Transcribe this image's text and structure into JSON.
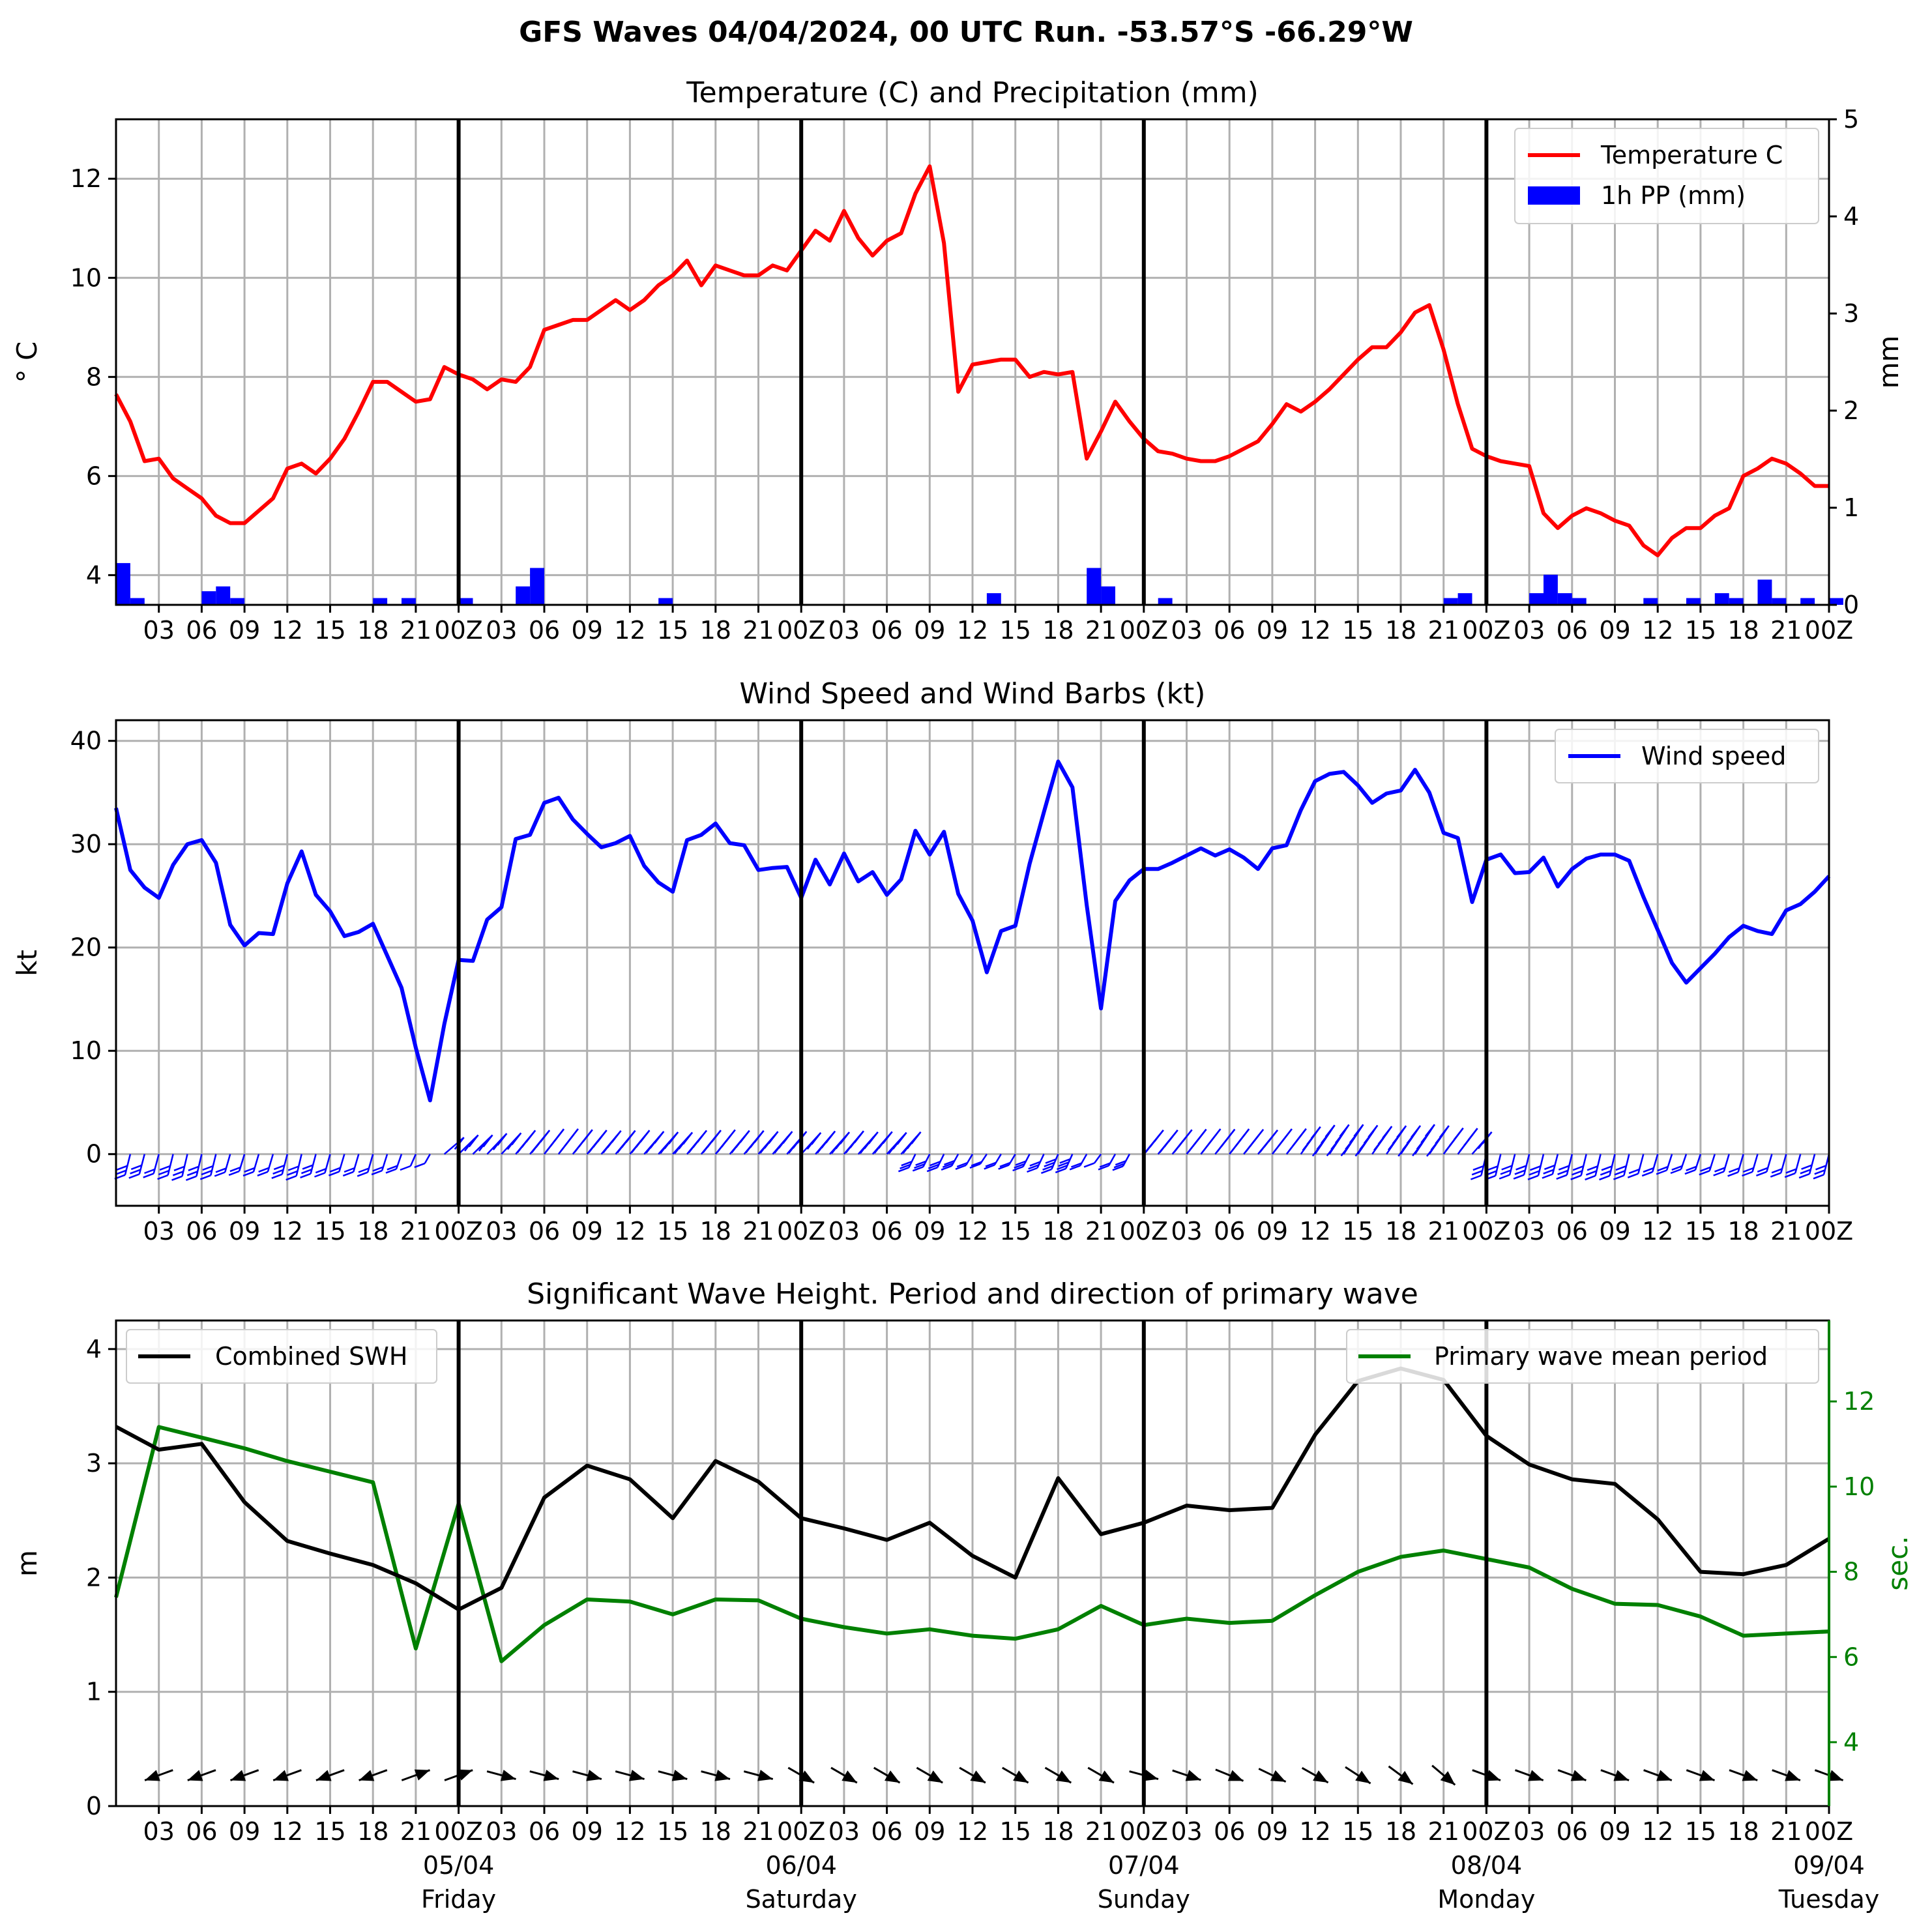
{
  "suptitle": "GFS Waves 04/04/2024, 00 UTC Run. -53.57°S -66.29°W",
  "colors": {
    "temperature": "#ff0000",
    "precip": "#0000ff",
    "wind": "#0000ff",
    "swh": "#000000",
    "period": "#008000",
    "grid": "#b0b0b0"
  },
  "x_ticks": [
    "03",
    "06",
    "09",
    "12",
    "15",
    "18",
    "21",
    "00Z",
    "03",
    "06",
    "09",
    "12",
    "15",
    "18",
    "21",
    "00Z",
    "03",
    "06",
    "09",
    "12",
    "15",
    "18",
    "21",
    "00Z",
    "03",
    "06",
    "09",
    "12",
    "15",
    "18",
    "21",
    "00Z",
    "03",
    "06",
    "09",
    "12",
    "15",
    "18",
    "21",
    "00Z"
  ],
  "date_labels": [
    {
      "date": "05/04",
      "day": "Friday"
    },
    {
      "date": "06/04",
      "day": "Saturday"
    },
    {
      "date": "07/04",
      "day": "Sunday"
    },
    {
      "date": "08/04",
      "day": "Monday"
    },
    {
      "date": "09/04",
      "day": "Tuesday"
    }
  ],
  "chart_data": [
    {
      "type": "line",
      "title": "Temperature (C) and Precipitation (mm)",
      "ylabel": "° C",
      "ylabel_right": "mm",
      "ylim": [
        3.4,
        13.2
      ],
      "ylim_right": [
        0,
        5
      ],
      "yticks": [
        4,
        6,
        8,
        10,
        12
      ],
      "yticks_right": [
        0,
        1,
        2,
        3,
        4,
        5
      ],
      "xlim_hours": [
        0,
        120
      ],
      "grid": true,
      "legend_position": "top-right",
      "series": [
        {
          "name": "Temperature C",
          "axis": "left",
          "kind": "line",
          "x": [
            0,
            1,
            2,
            3,
            4,
            5,
            6,
            7,
            8,
            9,
            10,
            11,
            12,
            13,
            14,
            15,
            16,
            17,
            18,
            19,
            20,
            21,
            22,
            23,
            24,
            25,
            26,
            27,
            28,
            29,
            30,
            31,
            32,
            33,
            34,
            35,
            36,
            37,
            38,
            39,
            40,
            41,
            42,
            43,
            44,
            45,
            46,
            47,
            48,
            49,
            50,
            51,
            52,
            53,
            54,
            55,
            56,
            57,
            58,
            59,
            60,
            61,
            62,
            63,
            64,
            65,
            66,
            67,
            68,
            69,
            70,
            71,
            72,
            73,
            74,
            75,
            76,
            77,
            78,
            79,
            80,
            81,
            82,
            83,
            84,
            85,
            86,
            87,
            88,
            89,
            90,
            91,
            92,
            93,
            94,
            95,
            96,
            97,
            98,
            99,
            100,
            101,
            102,
            103,
            104,
            105,
            106,
            107,
            108,
            109,
            110,
            111,
            112,
            113,
            114,
            115,
            116,
            117,
            118,
            119,
            120
          ],
          "values": [
            7.65,
            7.1,
            6.3,
            6.35,
            5.95,
            5.75,
            5.55,
            5.2,
            5.05,
            5.05,
            5.3,
            5.55,
            6.15,
            6.25,
            6.05,
            6.35,
            6.75,
            7.3,
            7.9,
            7.9,
            7.7,
            7.5,
            7.55,
            8.2,
            8.05,
            7.95,
            7.75,
            7.95,
            7.9,
            8.2,
            8.95,
            9.05,
            9.15,
            9.15,
            9.35,
            9.55,
            9.35,
            9.55,
            9.85,
            10.05,
            10.35,
            9.85,
            10.25,
            10.15,
            10.05,
            10.05,
            10.25,
            10.15,
            10.55,
            10.95,
            10.75,
            11.35,
            10.8,
            10.45,
            10.75,
            10.9,
            11.7,
            12.25,
            10.7,
            7.7,
            8.25,
            8.3,
            8.35,
            8.35,
            8.0,
            8.1,
            8.05,
            8.1,
            6.35,
            6.9,
            7.5,
            7.1,
            6.75,
            6.5,
            6.45,
            6.35,
            6.3,
            6.3,
            6.4,
            6.55,
            6.7,
            7.05,
            7.45,
            7.3,
            7.5,
            7.75,
            8.05,
            8.35,
            8.6,
            8.6,
            8.9,
            9.3,
            9.45,
            8.55,
            7.45,
            6.55,
            6.4,
            6.3,
            6.25,
            6.2,
            5.25,
            4.95,
            5.2,
            5.35,
            5.25,
            5.1,
            5.0,
            4.6,
            4.4,
            4.75,
            4.95,
            4.95,
            5.2,
            5.35,
            6.0,
            6.15,
            6.35,
            6.25,
            6.05,
            5.8,
            5.8
          ]
        },
        {
          "name": "1h PP (mm)",
          "axis": "right",
          "kind": "bar",
          "x": [
            0,
            1,
            6,
            7,
            8,
            18,
            20,
            24,
            28,
            29,
            38,
            61,
            68,
            69,
            73,
            93,
            94,
            99,
            100,
            101,
            102,
            107,
            110,
            112,
            113,
            115,
            116,
            118,
            120
          ],
          "values": [
            0.43,
            0.07,
            0.14,
            0.19,
            0.07,
            0.07,
            0.07,
            0.07,
            0.19,
            0.38,
            0.07,
            0.12,
            0.38,
            0.19,
            0.07,
            0.07,
            0.12,
            0.12,
            0.31,
            0.12,
            0.07,
            0.07,
            0.07,
            0.12,
            0.07,
            0.26,
            0.07,
            0.07,
            0.07
          ]
        }
      ]
    },
    {
      "type": "line",
      "title": "Wind Speed and Wind Barbs (kt)",
      "ylabel": "kt",
      "ylim": [
        -5,
        42
      ],
      "yticks": [
        0,
        10,
        20,
        30,
        40
      ],
      "xlim_hours": [
        0,
        120
      ],
      "grid": true,
      "legend_position": "top-right",
      "series": [
        {
          "name": "Wind speed",
          "x": [
            0,
            1,
            2,
            3,
            4,
            5,
            6,
            7,
            8,
            9,
            10,
            11,
            12,
            13,
            14,
            15,
            16,
            17,
            18,
            19,
            20,
            21,
            22,
            23,
            24,
            25,
            26,
            27,
            28,
            29,
            30,
            31,
            32,
            33,
            34,
            35,
            36,
            37,
            38,
            39,
            40,
            41,
            42,
            43,
            44,
            45,
            46,
            47,
            48,
            49,
            50,
            51,
            52,
            53,
            54,
            55,
            56,
            57,
            58,
            59,
            60,
            61,
            62,
            63,
            64,
            65,
            66,
            67,
            68,
            69,
            70,
            71,
            72,
            73,
            74,
            75,
            76,
            77,
            78,
            79,
            80,
            81,
            82,
            83,
            84,
            85,
            86,
            87,
            88,
            89,
            90,
            91,
            92,
            93,
            94,
            95,
            96,
            97,
            98,
            99,
            100,
            101,
            102,
            103,
            104,
            105,
            106,
            107,
            108,
            109,
            110,
            111,
            112,
            113,
            114,
            115,
            116,
            117,
            118,
            119,
            120
          ],
          "values": [
            33.5,
            27.5,
            25.8,
            24.8,
            28,
            30,
            30.4,
            28.2,
            22.2,
            20.2,
            21.4,
            21.3,
            26.2,
            29.3,
            25.1,
            23.5,
            21.1,
            21.5,
            22.3,
            19.2,
            16.1,
            10.3,
            5.2,
            12.6,
            18.8,
            18.7,
            22.7,
            23.9,
            30.5,
            30.9,
            34,
            34.5,
            32.4,
            31,
            29.7,
            30.1,
            30.8,
            27.9,
            26.3,
            25.4,
            30.4,
            30.9,
            32,
            30.1,
            29.9,
            27.5,
            27.7,
            27.8,
            24.8,
            28.5,
            26.1,
            29.1,
            26.4,
            27.3,
            25.1,
            26.6,
            31.3,
            29,
            31.2,
            25.2,
            22.6,
            17.6,
            21.6,
            22.1,
            28.1,
            33.1,
            38,
            35.5,
            24.1,
            14.1,
            24.5,
            26.5,
            27.6,
            27.6,
            28.2,
            28.9,
            29.6,
            28.9,
            29.5,
            28.7,
            27.6,
            29.6,
            29.9,
            33.3,
            36.1,
            36.8,
            37,
            35.7,
            34,
            34.9,
            35.2,
            37.2,
            35,
            31.1,
            30.6,
            24.4,
            28.5,
            29,
            27.2,
            27.3,
            28.7,
            25.9,
            27.6,
            28.6,
            29,
            29,
            28.4,
            24.9,
            21.7,
            18.5,
            16.6,
            18,
            19.4,
            21,
            22.1,
            21.6,
            21.3,
            23.6,
            24.2,
            25.4,
            26.9
          ]
        }
      ]
    },
    {
      "type": "line",
      "title": "Significant Wave Height. Period and direction of primary wave",
      "ylabel": "m",
      "ylabel_right": "sec.",
      "ylim": [
        0,
        4.25
      ],
      "ylim_right": [
        2.5,
        13.9
      ],
      "yticks": [
        0,
        1,
        2,
        3,
        4
      ],
      "yticks_right": [
        4,
        6,
        8,
        10,
        12
      ],
      "xlim_hours": [
        0,
        120
      ],
      "grid": true,
      "series": [
        {
          "name": "Combined SWH",
          "axis": "left",
          "legend_position": "top-left",
          "x": [
            0,
            3,
            6,
            9,
            12,
            15,
            18,
            21,
            24,
            27,
            30,
            33,
            36,
            39,
            42,
            45,
            48,
            51,
            54,
            57,
            60,
            63,
            66,
            69,
            72,
            75,
            78,
            81,
            84,
            87,
            90,
            93,
            96,
            99,
            102,
            105,
            108,
            111,
            114,
            117,
            120
          ],
          "values": [
            3.32,
            3.12,
            3.17,
            2.66,
            2.32,
            2.21,
            2.11,
            1.95,
            1.72,
            1.91,
            2.7,
            2.98,
            2.86,
            2.52,
            3.02,
            2.84,
            2.52,
            2.43,
            2.33,
            2.48,
            2.19,
            2.0,
            2.87,
            2.38,
            2.48,
            2.63,
            2.59,
            2.61,
            3.25,
            3.72,
            3.83,
            3.73,
            3.24,
            2.99,
            2.86,
            2.82,
            2.51,
            2.05,
            2.03,
            2.11,
            2.34
          ]
        },
        {
          "name": "Primary wave mean period",
          "axis": "right",
          "legend_position": "top-right",
          "x": [
            0,
            3,
            6,
            9,
            12,
            15,
            18,
            21,
            24,
            27,
            30,
            33,
            36,
            39,
            42,
            45,
            48,
            51,
            54,
            57,
            60,
            63,
            66,
            69,
            72,
            75,
            78,
            81,
            84,
            87,
            90,
            93,
            96,
            99,
            102,
            105,
            108,
            111,
            114,
            117,
            120
          ],
          "values": [
            7.4,
            11.4,
            11.15,
            10.9,
            10.6,
            10.35,
            10.1,
            6.2,
            9.6,
            5.9,
            6.75,
            7.35,
            7.3,
            7.0,
            7.35,
            7.33,
            6.9,
            6.7,
            6.55,
            6.65,
            6.5,
            6.43,
            6.65,
            7.2,
            6.75,
            6.9,
            6.8,
            6.85,
            7.45,
            8.0,
            8.35,
            8.5,
            8.3,
            8.1,
            7.6,
            7.25,
            7.22,
            6.95,
            6.5,
            6.55,
            6.6
          ]
        }
      ]
    }
  ]
}
